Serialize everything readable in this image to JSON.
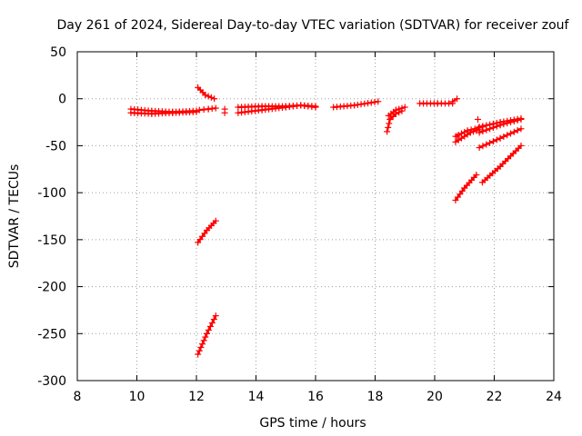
{
  "chart_data": {
    "type": "scatter",
    "title": "Day 261 of 2024, Sidereal Day-to-day VTEC variation (SDTVAR) for receiver zouf",
    "xlabel": "GPS time / hours",
    "ylabel": "SDTVAR / TECUs",
    "xlim": [
      8,
      24
    ],
    "ylim": [
      -300,
      50
    ],
    "xticks": [
      8,
      10,
      12,
      14,
      16,
      18,
      20,
      22,
      24
    ],
    "yticks": [
      -300,
      -250,
      -200,
      -150,
      -100,
      -50,
      0,
      50
    ],
    "grid": true,
    "marker": "+",
    "color": "#ff0000",
    "series": [
      {
        "x": [
          9.8,
          10.5,
          11.2,
          12.0
        ],
        "y": [
          -15,
          -16,
          -15,
          -14
        ]
      },
      {
        "x": [
          9.8,
          10.5,
          11.2,
          12.0
        ],
        "y": [
          -11,
          -13,
          -14,
          -13
        ]
      },
      {
        "x": [
          12.05,
          12.3,
          12.6
        ],
        "y": [
          12,
          4,
          0
        ]
      },
      {
        "x": [
          12.1,
          12.4,
          12.65
        ],
        "y": [
          -12,
          -11,
          -10
        ]
      },
      {
        "x": [
          12.05,
          12.35,
          12.65
        ],
        "y": [
          -153,
          -140,
          -130
        ]
      },
      {
        "x": [
          12.05,
          12.35,
          12.65
        ],
        "y": [
          -272,
          -250,
          -231
        ]
      },
      {
        "x": [
          13.4,
          14.2,
          15.0,
          15.5,
          16.0
        ],
        "y": [
          -15,
          -12,
          -9,
          -7,
          -9
        ]
      },
      {
        "x": [
          13.4,
          14.2,
          15.0,
          15.5,
          16.0
        ],
        "y": [
          -9,
          -8,
          -8,
          -7,
          -8
        ]
      },
      {
        "x": [
          16.6,
          17.3,
          18.1
        ],
        "y": [
          -9,
          -7,
          -3
        ]
      },
      {
        "x": [
          18.4,
          18.5,
          18.7,
          18.9
        ],
        "y": [
          -35,
          -22,
          -16,
          -13
        ]
      },
      {
        "x": [
          18.45,
          18.7,
          19.0
        ],
        "y": [
          -18,
          -12,
          -9
        ]
      },
      {
        "x": [
          19.5,
          20.1,
          20.6
        ],
        "y": [
          -5,
          -5,
          -5
        ]
      },
      {
        "x": [
          20.6,
          20.75
        ],
        "y": [
          -3,
          0
        ]
      },
      {
        "x": [
          20.7,
          21.2,
          21.5
        ],
        "y": [
          -46,
          -36,
          -33
        ]
      },
      {
        "x": [
          20.7,
          21.1,
          21.6
        ],
        "y": [
          -40,
          -34,
          -30
        ]
      },
      {
        "x": [
          21.5,
          22.2,
          22.9
        ],
        "y": [
          -36,
          -28,
          -22
        ]
      },
      {
        "x": [
          21.5,
          22.2,
          22.9
        ],
        "y": [
          -30,
          -25,
          -21
        ]
      },
      {
        "x": [
          21.5,
          22.2,
          22.9
        ],
        "y": [
          -52,
          -42,
          -32
        ]
      },
      {
        "x": [
          20.7,
          21.0,
          21.4
        ],
        "y": [
          -108,
          -95,
          -81
        ]
      },
      {
        "x": [
          21.6,
          22.2,
          22.9
        ],
        "y": [
          -89,
          -72,
          -50
        ]
      }
    ],
    "singles": [
      {
        "x": 12.95,
        "y": -11
      },
      {
        "x": 12.95,
        "y": -15
      },
      {
        "x": 21.45,
        "y": -22
      },
      {
        "x": 20.75,
        "y": -40
      }
    ]
  }
}
